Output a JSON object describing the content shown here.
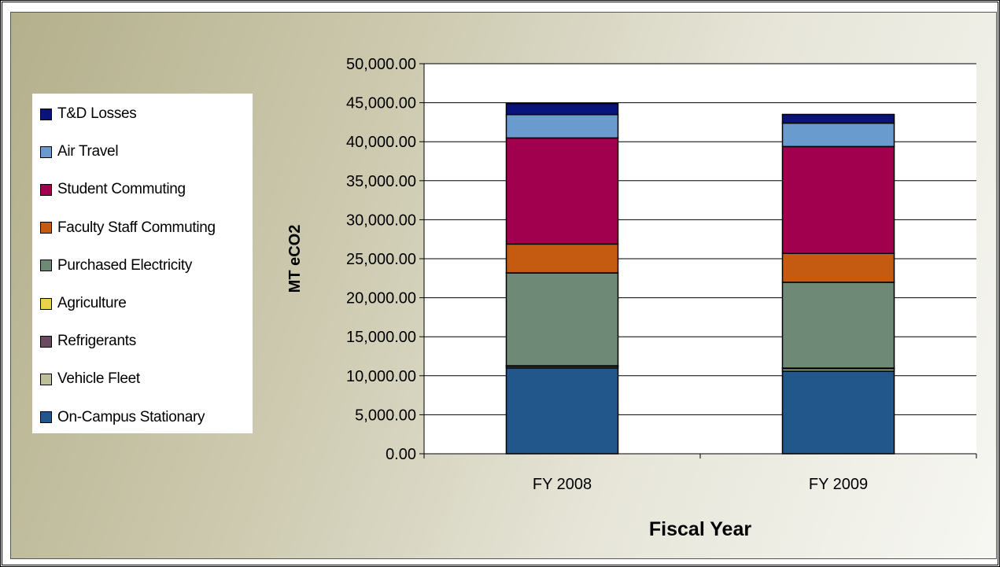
{
  "chart_data": {
    "type": "bar",
    "stacked": true,
    "title": "",
    "xlabel": "Fiscal Year",
    "ylabel": "MT eCO2",
    "ylim": [
      0,
      50000
    ],
    "ytick_step": 5000,
    "ytick_labels": [
      "0.00",
      "5,000.00",
      "10,000.00",
      "15,000.00",
      "20,000.00",
      "25,000.00",
      "30,000.00",
      "35,000.00",
      "40,000.00",
      "45,000.00",
      "50,000.00"
    ],
    "grid": true,
    "legend_placement": "left",
    "categories": [
      "FY 2008",
      "FY 2009"
    ],
    "series": [
      {
        "name": "On-Campus Stationary",
        "color": "#22578c",
        "values": [
          11000,
          10600
        ]
      },
      {
        "name": "Vehicle Fleet",
        "color": "#bfbf9a",
        "values": [
          200,
          300
        ]
      },
      {
        "name": "Refrigerants",
        "color": "#6a4a5e",
        "values": [
          50,
          50
        ]
      },
      {
        "name": "Agriculture",
        "color": "#e8d24a",
        "values": [
          30,
          30
        ]
      },
      {
        "name": "Purchased Electricity",
        "color": "#6e8a76",
        "values": [
          11900,
          11000
        ]
      },
      {
        "name": "Faculty Staff Commuting",
        "color": "#c55a11",
        "values": [
          3700,
          3700
        ]
      },
      {
        "name": "Student Commuting",
        "color": "#a0004e",
        "values": [
          13600,
          13700
        ]
      },
      {
        "name": "Air Travel",
        "color": "#6a9bcf",
        "values": [
          3000,
          3000
        ]
      },
      {
        "name": "T&D Losses",
        "color": "#0a127c",
        "values": [
          1420,
          1120
        ]
      }
    ]
  }
}
